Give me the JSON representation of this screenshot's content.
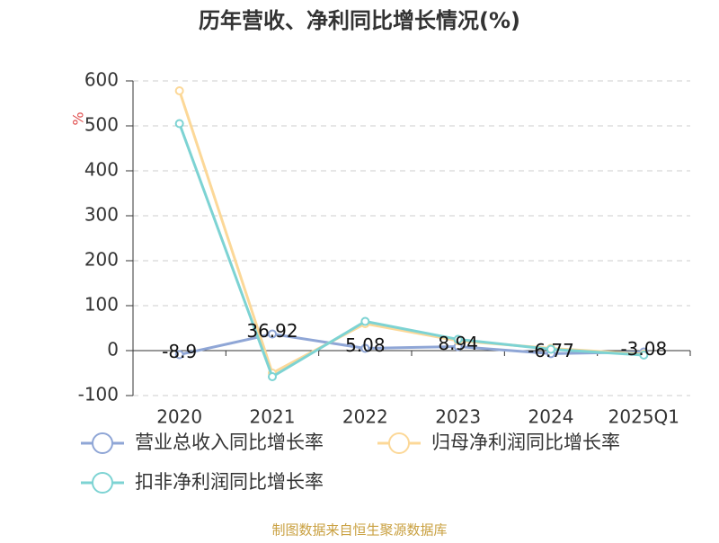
{
  "chart_data": {
    "type": "line",
    "title": "历年营收、净利同比增长情况(%)",
    "y_label": "%",
    "source": "制图数据来自恒生聚源数据库",
    "categories": [
      "2020",
      "2021",
      "2022",
      "2023",
      "2024",
      "2025Q1"
    ],
    "series": [
      {
        "name": "营业总收入同比增长率",
        "color": "#8fa6d6",
        "values": [
          -8.9,
          36.92,
          5.08,
          8.94,
          -6.77,
          -3.08
        ],
        "show_labels": true
      },
      {
        "name": "归母净利润同比增长率",
        "color": "#fcd898",
        "values": [
          578,
          -50,
          60,
          22,
          5,
          -8
        ]
      },
      {
        "name": "扣非净利润同比增长率",
        "color": "#7dd3d3",
        "values": [
          505,
          -58,
          65,
          25,
          3,
          -10
        ]
      }
    ],
    "ylim": [
      -100,
      600
    ],
    "yticks": [
      -100,
      0,
      100,
      200,
      300,
      400,
      500,
      600
    ],
    "grid": true
  }
}
